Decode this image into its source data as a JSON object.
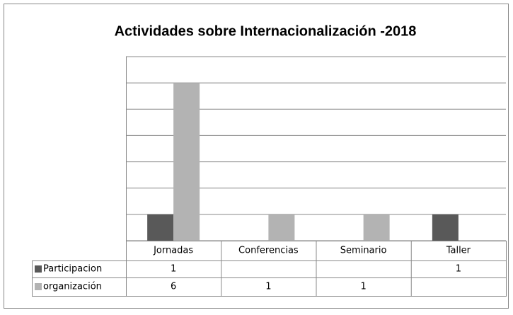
{
  "chart_data": {
    "type": "bar",
    "title": "Actividades sobre Internacionalización -2018",
    "categories": [
      "Jornadas",
      "Conferencias",
      "Seminario",
      "Taller"
    ],
    "series": [
      {
        "name": "Participacion",
        "color": "#595959",
        "values": [
          1,
          null,
          null,
          1
        ]
      },
      {
        "name": "organización",
        "color": "#b3b3b3",
        "values": [
          6,
          1,
          1,
          null
        ]
      }
    ],
    "ylim": [
      0,
      7
    ],
    "yticks": [
      0,
      1,
      2,
      3,
      4,
      5,
      6,
      7
    ],
    "grid": true
  }
}
